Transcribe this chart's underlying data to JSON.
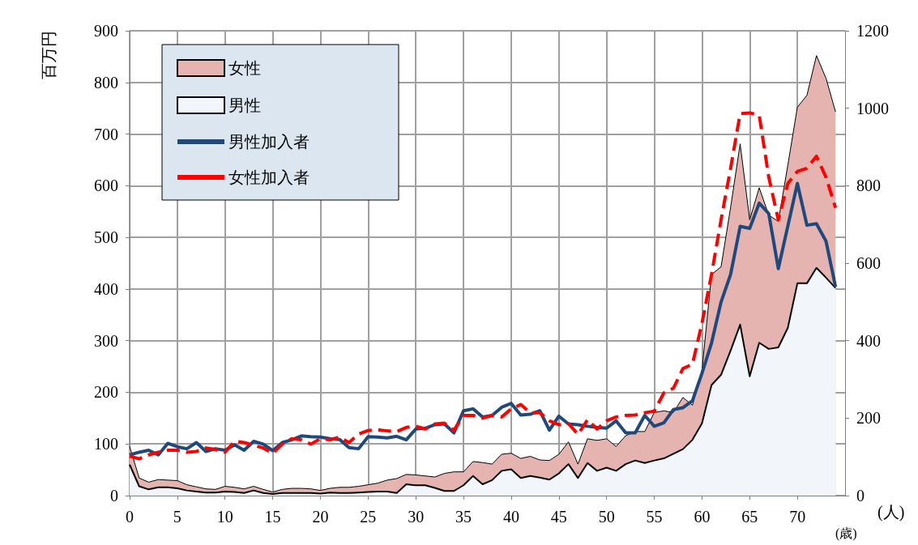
{
  "chart_data": {
    "type": "area",
    "stacked": true,
    "ylabel": "百万円",
    "y2label": "(人)",
    "xlabel": "(歳)",
    "x": [
      0,
      1,
      2,
      3,
      4,
      5,
      6,
      7,
      8,
      9,
      10,
      11,
      12,
      13,
      14,
      15,
      16,
      17,
      18,
      19,
      20,
      21,
      22,
      23,
      24,
      25,
      26,
      27,
      28,
      29,
      30,
      31,
      32,
      33,
      34,
      35,
      36,
      37,
      38,
      39,
      40,
      41,
      42,
      43,
      44,
      45,
      46,
      47,
      48,
      49,
      50,
      51,
      52,
      53,
      54,
      55,
      56,
      57,
      58,
      59,
      60,
      61,
      62,
      63,
      64,
      65,
      66,
      67,
      68,
      69,
      70,
      71,
      72,
      73,
      74
    ],
    "xlim": [
      0,
      75
    ],
    "xticks": [
      0,
      5,
      10,
      15,
      20,
      25,
      30,
      35,
      40,
      45,
      50,
      55,
      60,
      65,
      70
    ],
    "ylim": [
      0,
      900
    ],
    "yticks": [
      0,
      100,
      200,
      300,
      400,
      500,
      600,
      700,
      800,
      900
    ],
    "y2lim": [
      0,
      1200
    ],
    "y2ticks": [
      0,
      200,
      400,
      600,
      800,
      1000,
      1200
    ],
    "grid": true,
    "legend": "top left",
    "marker": "none",
    "series": [
      {
        "name": "男性",
        "color": "#f2f6fa",
        "values": [
          60,
          18,
          12,
          16,
          16,
          14,
          10,
          8,
          6,
          6,
          8,
          7,
          5,
          10,
          5,
          3,
          5,
          5,
          5,
          5,
          4,
          6,
          5,
          5,
          6,
          7,
          8,
          8,
          5,
          22,
          20,
          20,
          15,
          9,
          9,
          20,
          38,
          22,
          30,
          48,
          51,
          34,
          38,
          35,
          31,
          43,
          61,
          34,
          63,
          48,
          54,
          48,
          61,
          68,
          63,
          68,
          72,
          81,
          90,
          108,
          140,
          214,
          234,
          281,
          331,
          231,
          296,
          284,
          287,
          325,
          411,
          411,
          441,
          422,
          402
        ]
      },
      {
        "name": "女性",
        "color": "#e6b4b0",
        "values": [
          35,
          16,
          14,
          15,
          14,
          15,
          11,
          9,
          7,
          6,
          10,
          9,
          8,
          8,
          7,
          4,
          7,
          9,
          9,
          8,
          6,
          8,
          11,
          11,
          12,
          14,
          16,
          22,
          28,
          19,
          20,
          18,
          21,
          34,
          37,
          26,
          28,
          42,
          31,
          32,
          31,
          38,
          38,
          34,
          37,
          37,
          43,
          27,
          47,
          59,
          56,
          47,
          55,
          56,
          61,
          93,
          92,
          80,
          100,
          67,
          103,
          214,
          209,
          277,
          350,
          303,
          300,
          259,
          244,
          315,
          341,
          364,
          411,
          386,
          341
        ]
      },
      {
        "name": "男性加入者",
        "type": "line",
        "axis": "y2",
        "color": "#1f497d",
        "line_style": "solid",
        "values": [
          105,
          112,
          117,
          105,
          135,
          126,
          121,
          137,
          114,
          121,
          117,
          131,
          117,
          140,
          133,
          116,
          137,
          144,
          154,
          152,
          151,
          147,
          145,
          124,
          121,
          152,
          151,
          149,
          153,
          144,
          172,
          174,
          183,
          185,
          162,
          219,
          224,
          203,
          207,
          228,
          238,
          208,
          210,
          219,
          169,
          205,
          185,
          183,
          179,
          176,
          174,
          193,
          162,
          162,
          207,
          179,
          188,
          222,
          227,
          245,
          316,
          394,
          500,
          571,
          695,
          690,
          755,
          728,
          586,
          696,
          806,
          698,
          702,
          657,
          539
        ]
      },
      {
        "name": "女性加入者",
        "type": "line",
        "axis": "y2",
        "color": "#ff0000",
        "line_style": "dashed",
        "values": [
          102,
          95,
          105,
          112,
          117,
          117,
          112,
          114,
          123,
          119,
          112,
          140,
          137,
          130,
          123,
          109,
          133,
          147,
          144,
          133,
          147,
          144,
          151,
          137,
          159,
          168,
          170,
          167,
          165,
          176,
          179,
          172,
          185,
          187,
          169,
          207,
          207,
          200,
          207,
          203,
          224,
          235,
          214,
          214,
          193,
          183,
          186,
          158,
          196,
          172,
          193,
          203,
          207,
          208,
          214,
          218,
          265,
          277,
          328,
          339,
          445,
          571,
          712,
          845,
          986,
          988,
          982,
          822,
          712,
          806,
          837,
          845,
          876,
          822,
          743
        ]
      }
    ]
  }
}
